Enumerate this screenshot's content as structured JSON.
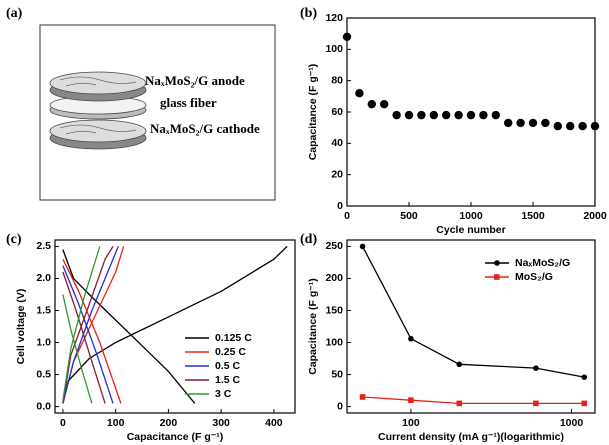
{
  "diagram": {
    "panel_label": "(a)",
    "labels": [
      "NaₓMoS₂/G anode",
      "glass fiber",
      "NaₓMoS₂/G cathode"
    ]
  },
  "chart_data": [
    {
      "type": "scatter",
      "label": "(b)",
      "color": "#000000",
      "x": [
        0,
        100,
        200,
        300,
        400,
        500,
        600,
        700,
        800,
        900,
        1000,
        1100,
        1200,
        1300,
        1400,
        1500,
        1600,
        1700,
        1800,
        1900,
        2000
      ],
      "values": [
        108,
        72,
        65,
        65,
        58,
        58,
        58,
        58,
        58,
        58,
        58,
        58,
        58,
        53,
        53,
        53,
        53,
        51,
        51,
        51,
        51
      ],
      "xlim": [
        0,
        2000
      ],
      "ylim": [
        0,
        120
      ],
      "xticks": [
        0,
        500,
        1000,
        1500,
        2000
      ],
      "yticks": [
        0,
        20,
        40,
        60,
        80,
        100,
        120
      ],
      "xlabel": "Cycle number",
      "ylabel": "Capacitance (F g⁻¹)"
    },
    {
      "type": "line",
      "label": "(c)",
      "legend_position": "lower right",
      "xlim": [
        -15,
        440
      ],
      "ylim": [
        -0.1,
        2.6
      ],
      "xticks": [
        0,
        100,
        200,
        300,
        400
      ],
      "yticks": [
        {
          "value": 0,
          "label": "0.0"
        },
        {
          "value": 0.5,
          "label": "0.5"
        },
        {
          "value": 1,
          "label": "1.0"
        },
        {
          "value": 1.5,
          "label": "1.5"
        },
        {
          "value": 2,
          "label": "2.0"
        },
        {
          "value": 2.5,
          "label": "2.5"
        }
      ],
      "xlabel": "Capacitance (F g⁻¹)",
      "ylabel": "Cell voltage (V)",
      "series": [
        {
          "name": "0.125 C",
          "color": "#000000",
          "x": [
            0,
            10,
            50,
            100,
            200,
            300,
            400,
            425,
            null,
            0,
            20,
            50,
            100,
            150,
            200,
            250
          ],
          "values": [
            0.05,
            0.4,
            0.75,
            1.0,
            1.4,
            1.8,
            2.3,
            2.5,
            null,
            2.45,
            2.0,
            1.75,
            1.35,
            0.95,
            0.55,
            0.05
          ]
        },
        {
          "name": "0.25 C",
          "color": "#e8201a",
          "x": [
            0,
            20,
            60,
            100,
            115,
            null,
            0,
            30,
            70,
            110
          ],
          "values": [
            0.05,
            0.7,
            1.4,
            2.1,
            2.5,
            null,
            2.3,
            1.8,
            1.0,
            0.05
          ]
        },
        {
          "name": "0.5 C",
          "color": "#1f2fd0",
          "x": [
            0,
            20,
            55,
            90,
            105,
            null,
            0,
            30,
            65,
            95
          ],
          "values": [
            0.05,
            0.7,
            1.5,
            2.2,
            2.5,
            null,
            2.2,
            1.6,
            0.8,
            0.05
          ]
        },
        {
          "name": "1.5 C",
          "color": "#8b1a2a",
          "x": [
            0,
            15,
            50,
            80,
            95,
            null,
            0,
            25,
            55,
            80
          ],
          "values": [
            0.05,
            0.8,
            1.6,
            2.3,
            2.5,
            null,
            2.1,
            1.5,
            0.7,
            0.05
          ]
        },
        {
          "name": "3 C",
          "color": "#2e9a2e",
          "x": [
            0,
            15,
            40,
            70,
            null,
            0,
            15,
            35,
            55
          ],
          "values": [
            0.1,
            0.9,
            1.7,
            2.5,
            null,
            1.75,
            1.2,
            0.6,
            0.05
          ]
        }
      ]
    },
    {
      "type": "line",
      "label": "(d)",
      "legend_position": "upper right",
      "xscale": "log",
      "x": [
        50,
        100,
        200,
        600,
        1200
      ],
      "xlim": [
        40,
        1400
      ],
      "ylim": [
        -10,
        260
      ],
      "xticks": [
        100,
        1000
      ],
      "yticks": [
        0,
        50,
        100,
        150,
        200,
        250
      ],
      "xlabel": "Current density (mA g⁻¹)(logarithmic)",
      "ylabel": "Capacitance (F g⁻¹)",
      "series": [
        {
          "name": "NaₓMoS₂/G",
          "color": "#000000",
          "marker": "circle",
          "values": [
            250,
            106,
            66,
            60,
            46
          ]
        },
        {
          "name": "MoS₂/G",
          "color": "#e8201a",
          "marker": "square",
          "values": [
            15,
            10,
            5,
            5,
            5
          ]
        }
      ]
    }
  ]
}
